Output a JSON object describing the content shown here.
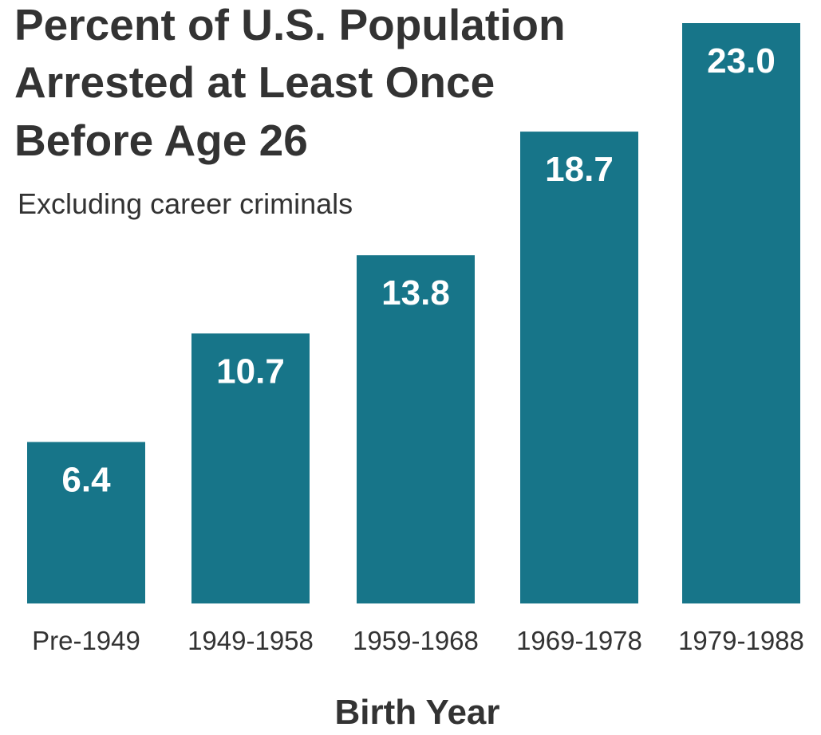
{
  "chart_data": {
    "type": "bar",
    "title_lines": [
      "Percent of U.S. Population",
      "Arrested at Least Once",
      "Before Age 26"
    ],
    "subtitle": "Excluding career criminals",
    "xlabel": "Birth Year",
    "ylabel": "",
    "categories": [
      "Pre-1949",
      "1949-1958",
      "1959-1968",
      "1969-1978",
      "1979-1988"
    ],
    "values": [
      6.4,
      10.7,
      13.8,
      18.7,
      23.0
    ],
    "value_labels": [
      "6.4",
      "10.7",
      "13.8",
      "18.7",
      "23.0"
    ],
    "ylim": [
      0,
      23.5
    ],
    "grid": false,
    "legend": "none",
    "colors": {
      "bar": "#177589",
      "text": "#333333",
      "bar_label": "#ffffff",
      "background": "#ffffff"
    }
  }
}
